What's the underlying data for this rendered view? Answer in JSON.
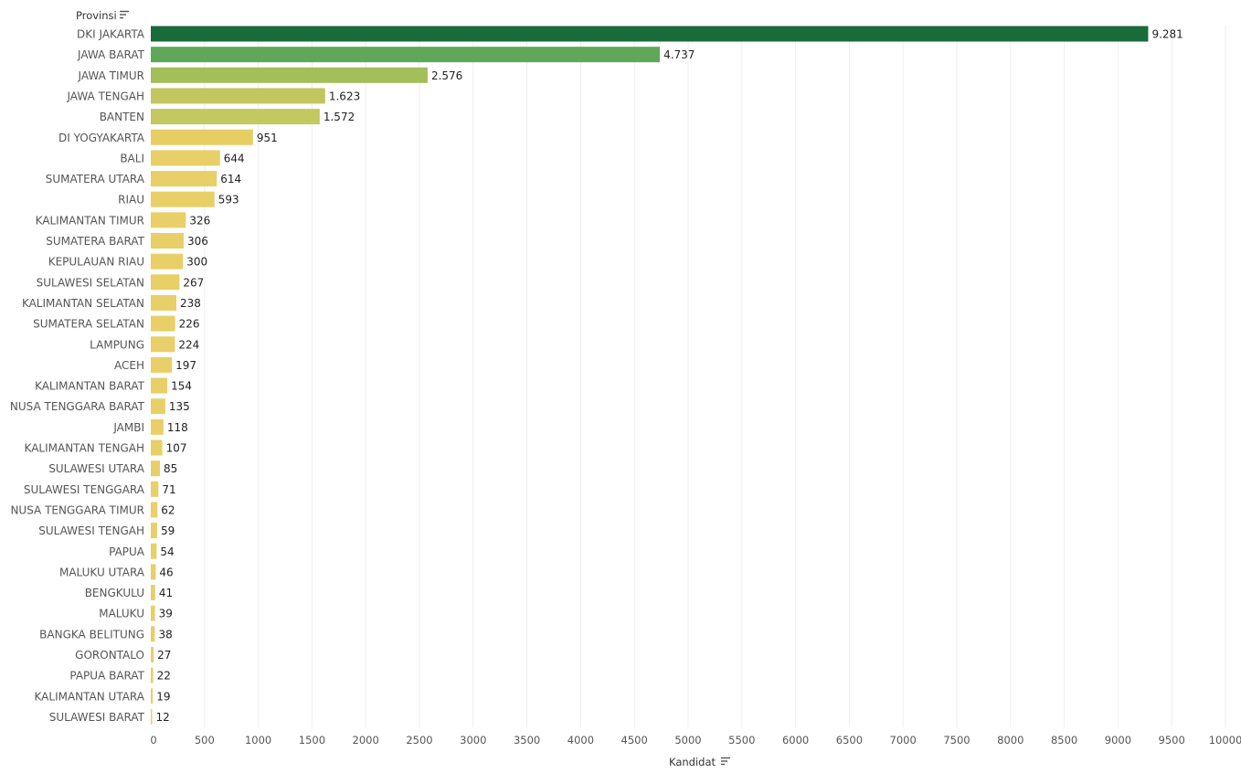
{
  "chart_data": {
    "type": "bar",
    "orientation": "horizontal",
    "ylabel": "Provinsi",
    "xlabel": "Kandidat",
    "xlim": [
      0,
      10000
    ],
    "xticks": [
      0,
      500,
      1000,
      1500,
      2000,
      2500,
      3000,
      3500,
      4000,
      4500,
      5000,
      5500,
      6000,
      6500,
      7000,
      7500,
      8000,
      8500,
      9000,
      9500,
      10000
    ],
    "grid": true,
    "categories": [
      "DKI JAKARTA",
      "JAWA BARAT",
      "JAWA TIMUR",
      "JAWA TENGAH",
      "BANTEN",
      "DI YOGYAKARTA",
      "BALI",
      "SUMATERA UTARA",
      "RIAU",
      "KALIMANTAN TIMUR",
      "SUMATERA BARAT",
      "KEPULAUAN RIAU",
      "SULAWESI SELATAN",
      "KALIMANTAN SELATAN",
      "SUMATERA SELATAN",
      "LAMPUNG",
      "ACEH",
      "KALIMANTAN BARAT",
      "NUSA TENGGARA BARAT",
      "JAMBI",
      "KALIMANTAN TENGAH",
      "SULAWESI UTARA",
      "SULAWESI TENGGARA",
      "NUSA TENGGARA TIMUR",
      "SULAWESI TENGAH",
      "PAPUA",
      "MALUKU UTARA",
      "BENGKULU",
      "MALUKU",
      "BANGKA BELITUNG",
      "GORONTALO",
      "PAPUA BARAT",
      "KALIMANTAN UTARA",
      "SULAWESI BARAT"
    ],
    "values": [
      9281,
      4737,
      2576,
      1623,
      1572,
      951,
      644,
      614,
      593,
      326,
      306,
      300,
      267,
      238,
      226,
      224,
      197,
      154,
      135,
      118,
      107,
      85,
      71,
      62,
      59,
      54,
      46,
      41,
      39,
      38,
      27,
      22,
      19,
      12
    ],
    "value_labels": [
      "9.281",
      "4.737",
      "2.576",
      "1.623",
      "1.572",
      "951",
      "644",
      "614",
      "593",
      "326",
      "306",
      "300",
      "267",
      "238",
      "226",
      "224",
      "197",
      "154",
      "135",
      "118",
      "107",
      "85",
      "71",
      "62",
      "59",
      "54",
      "46",
      "41",
      "39",
      "38",
      "27",
      "22",
      "19",
      "12"
    ],
    "colors": {
      "DKI JAKARTA": "#1a6b3a",
      "JAWA BARAT": "#5fa85a",
      "JAWA TIMUR": "#a4be59",
      "JAWA TENGAH": "#c2c65f",
      "BANTEN": "#c4c860",
      "default": "#e8cf68",
      "DI YOGYAKARTA": "#e6cd64"
    }
  }
}
